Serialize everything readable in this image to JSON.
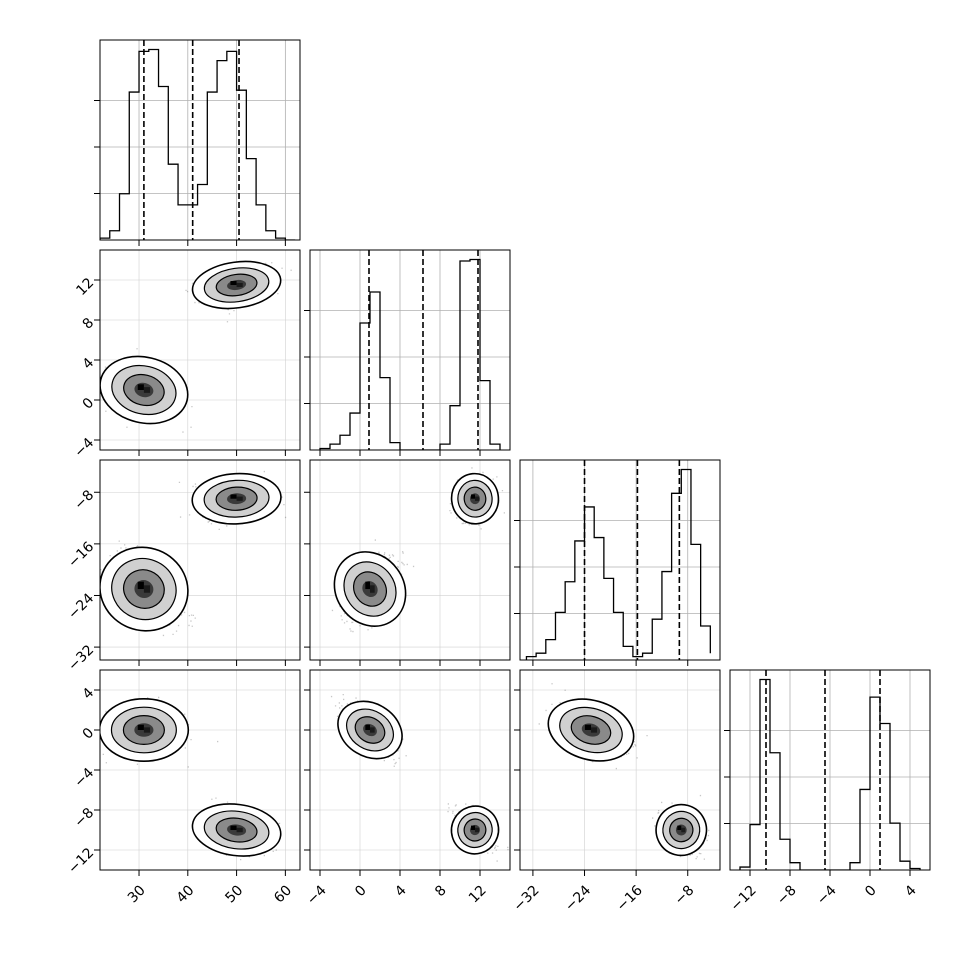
{
  "chart_data": {
    "type": "corner",
    "parameters": [
      {
        "range": [
          22,
          63
        ],
        "ticks": [
          30,
          40,
          50,
          60
        ],
        "tick_labels": [
          "30",
          "40",
          "50",
          "60"
        ],
        "quantiles": [
          31.0,
          41.0,
          50.5
        ],
        "histogram": {
          "edges": [
            22,
            24,
            26,
            28,
            30,
            32,
            34,
            36,
            38,
            40,
            42,
            44,
            46,
            48,
            50,
            52,
            54,
            56,
            58,
            60,
            62
          ],
          "counts": [
            1,
            5,
            25,
            80,
            102,
            103,
            83,
            41,
            19,
            19,
            30,
            80,
            97,
            102,
            81,
            44,
            19,
            5,
            1,
            0
          ]
        }
      },
      {
        "range": [
          -5,
          15
        ],
        "ticks": [
          -4,
          0,
          4,
          8,
          12
        ],
        "tick_labels": [
          "−4",
          "0",
          "4",
          "8",
          "12"
        ],
        "quantiles": [
          0.9,
          6.3,
          11.8
        ],
        "histogram": {
          "edges": [
            -4,
            -3,
            -2,
            -1,
            0,
            1,
            2,
            3,
            4,
            5,
            6,
            7,
            8,
            9,
            10,
            11,
            12,
            13,
            14
          ],
          "counts": [
            1,
            4,
            10,
            25,
            86,
            107,
            49,
            5,
            0,
            0,
            0,
            0,
            4,
            30,
            128,
            129,
            47,
            4
          ]
        }
      },
      {
        "range": [
          -34,
          -3
        ],
        "ticks": [
          -32,
          -24,
          -16,
          -8
        ],
        "tick_labels": [
          "−32",
          "−24",
          "−16",
          "−8"
        ],
        "quantiles": [
          -24.0,
          -15.8,
          -9.3
        ],
        "histogram": {
          "edges": [
            -33,
            -31.5,
            -30,
            -28.5,
            -27,
            -25.5,
            -24,
            -22.5,
            -21,
            -19.5,
            -18,
            -16.5,
            -15,
            -13.5,
            -12,
            -10.5,
            -9,
            -7.5,
            -6,
            -4.5
          ],
          "counts": [
            1,
            2,
            6,
            14,
            23,
            35,
            45,
            36,
            24,
            14,
            4,
            1,
            2,
            12,
            26,
            49,
            56,
            34,
            10,
            2
          ]
        }
      },
      {
        "range": [
          -14,
          6
        ],
        "ticks": [
          -12,
          -8,
          -4,
          0,
          4
        ],
        "tick_labels": [
          "−12",
          "−8",
          "−4",
          "0",
          "4"
        ],
        "quantiles": [
          -10.4,
          -4.5,
          1.0
        ],
        "histogram": {
          "edges": [
            -13,
            -12,
            -11,
            -10,
            -9,
            -8,
            -7,
            -6,
            -5,
            -4,
            -3,
            -2,
            -1,
            0,
            1,
            2,
            3,
            4,
            5
          ],
          "counts": [
            2,
            31,
            130,
            80,
            21,
            5,
            0,
            0,
            0,
            0,
            0,
            5,
            55,
            118,
            100,
            32,
            6,
            1
          ]
        }
      }
    ],
    "clusters": [
      {
        "mean": [
          31.0,
          1.0,
          -23.0,
          0.0
        ],
        "sd": [
          3.5,
          1.3,
          2.6,
          1.2
        ]
      },
      {
        "mean": [
          50.0,
          11.5,
          -9.0,
          -10.0
        ],
        "sd": [
          3.5,
          0.9,
          1.5,
          1.0
        ]
      }
    ],
    "correlations": {
      "1-0": [
        -0.35,
        0.3
      ],
      "2-0": [
        -0.45,
        0.1
      ],
      "2-1": [
        0.65,
        0.1
      ],
      "3-0": [
        0.0,
        -0.25
      ],
      "3-1": [
        -0.75,
        -0.55
      ],
      "3-2": [
        -0.45,
        -0.3
      ]
    },
    "grid": true,
    "quantile_line_style": "dashed",
    "contour_levels": 3
  }
}
